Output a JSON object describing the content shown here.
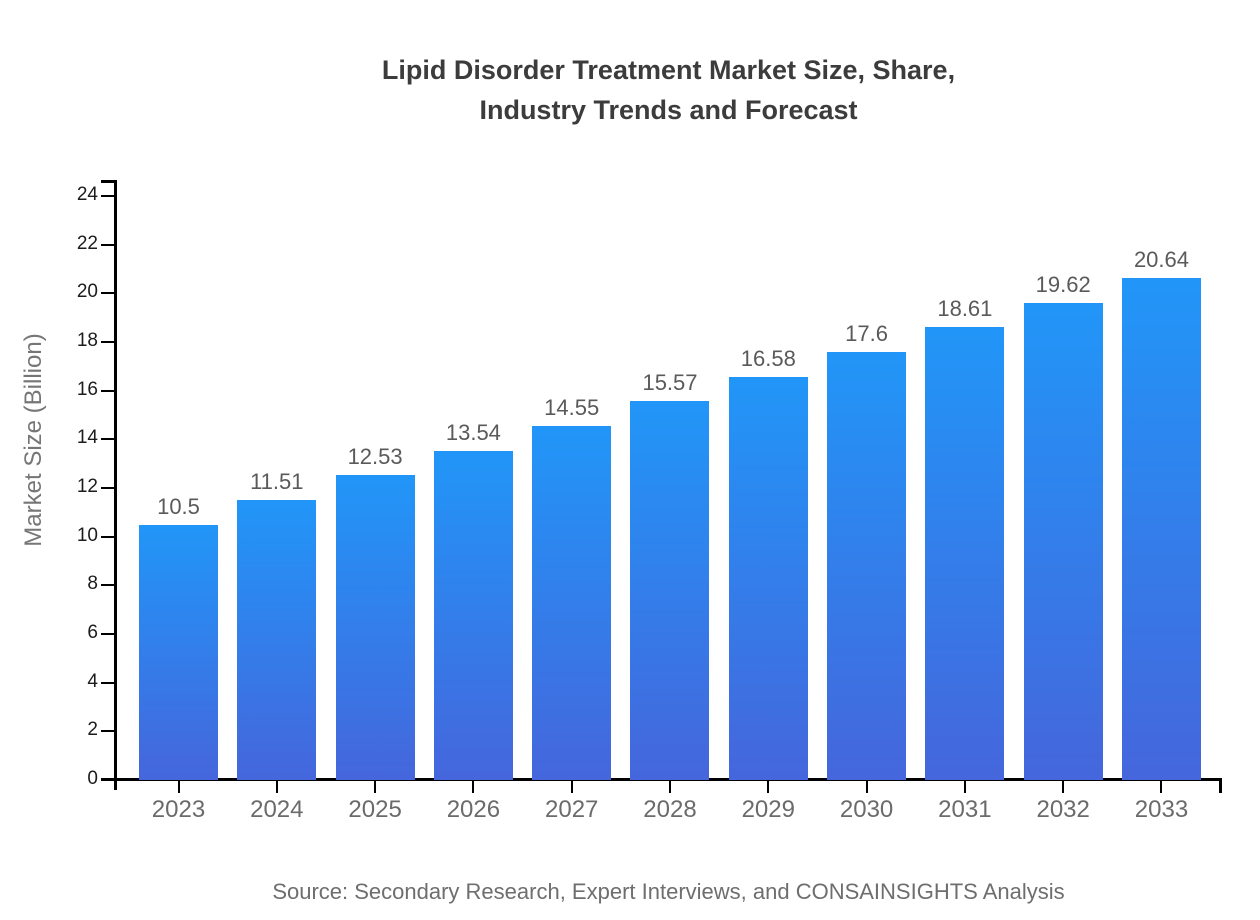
{
  "title": {
    "line1": "Lipid Disorder Treatment Market Size, Share,",
    "line2": "Industry Trends and Forecast"
  },
  "y_axis_title": "Market Size (Billion)",
  "source_note": "Source: Secondary Research, Expert Interviews, and CONSAINSIGHTS Analysis",
  "colors": {
    "title_text": "#3c3c3c",
    "axis": "#000000",
    "y_tick_label": "#1c1c1c",
    "x_tick_label": "#6b6b6b",
    "value_label": "#5a5a5a",
    "source_text": "#6e6e6e",
    "y_axis_title_text": "#767676",
    "bar_top": "#2196f8",
    "bar_bottom": "#4566dc"
  },
  "chart_data": {
    "type": "bar",
    "title": "Lipid Disorder Treatment Market Size, Share, Industry Trends and Forecast",
    "categories": [
      "2023",
      "2024",
      "2025",
      "2026",
      "2027",
      "2028",
      "2029",
      "2030",
      "2031",
      "2032",
      "2033"
    ],
    "values": [
      10.5,
      11.51,
      12.53,
      13.54,
      14.55,
      15.57,
      16.58,
      17.6,
      18.61,
      19.62,
      20.64
    ],
    "value_labels": [
      "10.5",
      "11.51",
      "12.53",
      "13.54",
      "14.55",
      "15.57",
      "16.58",
      "17.6",
      "18.61",
      "19.62",
      "20.64"
    ],
    "xlabel": "",
    "ylabel": "Market Size (Billion)",
    "ylim": [
      0,
      24
    ],
    "yticks": [
      0,
      2,
      4,
      6,
      8,
      10,
      12,
      14,
      16,
      18,
      20,
      22,
      24
    ],
    "grid": false,
    "legend": "none",
    "bar_gradient_top": "#2196f8",
    "bar_gradient_bottom": "#4566dc"
  }
}
